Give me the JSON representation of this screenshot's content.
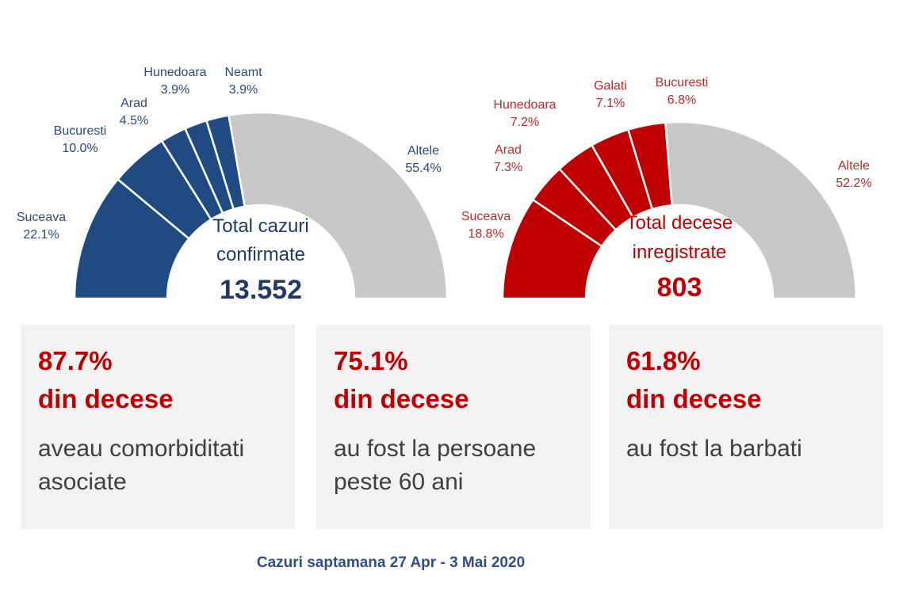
{
  "chart_data": [
    {
      "type": "pie",
      "subtype": "half-donut",
      "center_title_lines": [
        "Total cazuri",
        "confirmate"
      ],
      "center_value": "13.552",
      "colors": {
        "main": "#204a82",
        "rest": "#c8c8c8",
        "label": "#2a4a7a",
        "center": "#1f3a66"
      },
      "slices": [
        {
          "label": "Suceava",
          "value": 22.1,
          "value_label": "22.1%"
        },
        {
          "label": "Bucuresti",
          "value": 10.0,
          "value_label": "10.0%"
        },
        {
          "label": "Arad",
          "value": 4.5,
          "value_label": "4.5%"
        },
        {
          "label": "Hunedoara",
          "value": 3.9,
          "value_label": "3.9%"
        },
        {
          "label": "Neamt",
          "value": 3.9,
          "value_label": "3.9%"
        },
        {
          "label": "Altele",
          "value": 55.4,
          "value_label": "55.4%"
        }
      ]
    },
    {
      "type": "pie",
      "subtype": "half-donut",
      "center_title_lines": [
        "Total decese",
        "inregistrate"
      ],
      "center_value": "803",
      "colors": {
        "main": "#c00000",
        "rest": "#c8c8c8",
        "label": "#c0262b",
        "center": "#c00000"
      },
      "slices": [
        {
          "label": "Suceava",
          "value": 18.8,
          "value_label": "18.8%"
        },
        {
          "label": "Arad",
          "value": 7.3,
          "value_label": "7.3%"
        },
        {
          "label": "Hunedoara",
          "value": 7.2,
          "value_label": "7.2%"
        },
        {
          "label": "Galati",
          "value": 7.1,
          "value_label": "7.1%"
        },
        {
          "label": "Bucuresti",
          "value": 6.8,
          "value_label": "6.8%"
        },
        {
          "label": "Altele",
          "value": 52.2,
          "value_label": "52.2%"
        }
      ]
    }
  ],
  "cards": [
    {
      "pct": "87.7%",
      "label": "din decese",
      "desc": "aveau comorbiditati asociate"
    },
    {
      "pct": "75.1%",
      "label": "din decese",
      "desc": "au fost la persoane peste 60 ani"
    },
    {
      "pct": "61.8%",
      "label": "din decese",
      "desc": "au fost la barbati"
    }
  ],
  "footer": "Cazuri saptamana 27 Apr - 3 Mai 2020"
}
